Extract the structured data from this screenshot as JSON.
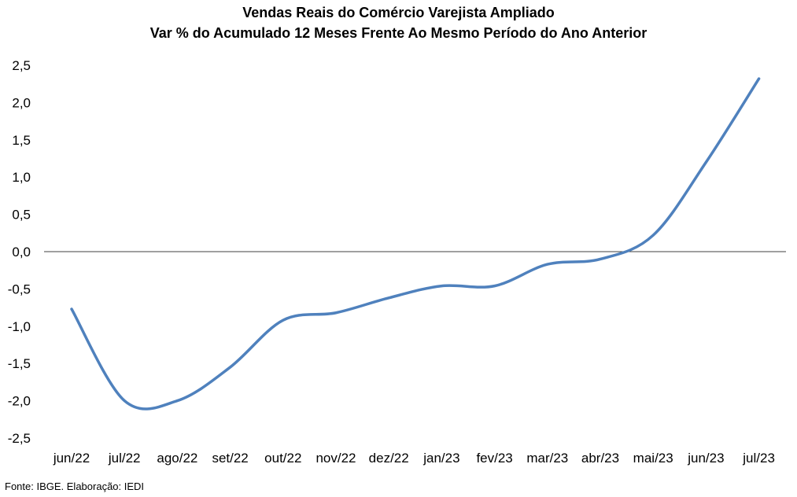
{
  "chart_data": {
    "type": "line",
    "title": "Vendas Reais do Comércio Varejista Ampliado",
    "subtitle": "Var % do Acumulado  12 Meses Frente Ao Mesmo Período do Ano Anterior",
    "xlabel": "",
    "ylabel": "",
    "categories": [
      "jun/22",
      "jul/22",
      "ago/22",
      "set/22",
      "out/22",
      "nov/22",
      "dez/22",
      "jan/23",
      "fev/23",
      "mar/23",
      "abr/23",
      "mai/23",
      "jun/23",
      "jul/23"
    ],
    "series": [
      {
        "values": [
          -0.77,
          -2.0,
          -2.0,
          -1.55,
          -0.92,
          -0.82,
          -0.62,
          -0.46,
          -0.46,
          -0.17,
          -0.1,
          0.22,
          1.2,
          2.32
        ]
      }
    ],
    "ylim": [
      -2.5,
      2.5
    ],
    "yticks": [
      "2,5",
      "2,0",
      "1,5",
      "1,0",
      "0,5",
      "0,0",
      "-0,5",
      "-1,0",
      "-1,5",
      "-2,0",
      "-2,5"
    ],
    "ytick_values": [
      2.5,
      2.0,
      1.5,
      1.0,
      0.5,
      0.0,
      -0.5,
      -1.0,
      -1.5,
      -2.0,
      -2.5
    ],
    "grid": false,
    "legend": "none",
    "line_color": "#4f81bd",
    "zero_line_color": "#404040"
  },
  "footer": {
    "source": "Fonte: IBGE. Elaboração: IEDI"
  }
}
